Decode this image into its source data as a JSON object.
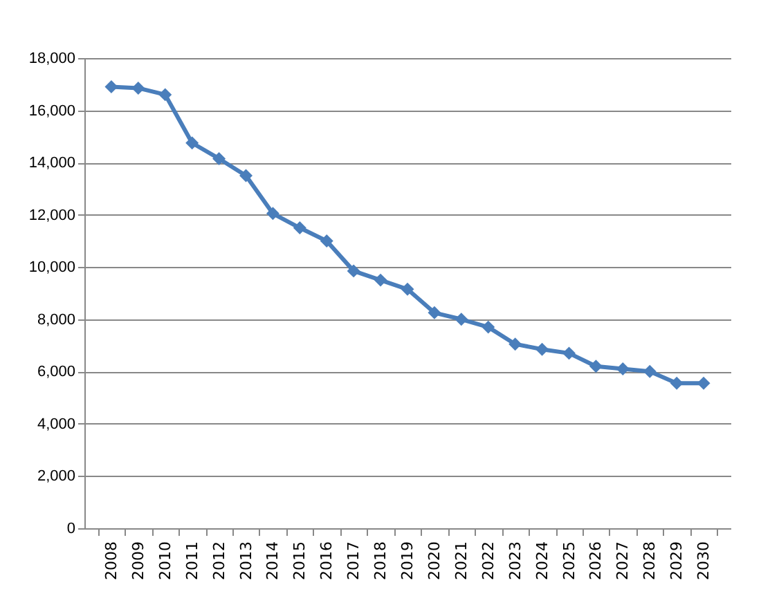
{
  "chart_data": {
    "type": "line",
    "categories": [
      "2008",
      "2009",
      "2010",
      "2011",
      "2012",
      "2013",
      "2014",
      "2015",
      "2016",
      "2017",
      "2018",
      "2019",
      "2020",
      "2021",
      "2022",
      "2023",
      "2024",
      "2025",
      "2026",
      "2027",
      "2028",
      "2029",
      "2030"
    ],
    "series": [
      {
        "color": "#4a7ebb",
        "values": [
          16900,
          16850,
          16600,
          14750,
          14150,
          13500,
          12050,
          11500,
          11000,
          9850,
          9500,
          9150,
          8250,
          8000,
          7700,
          7050,
          6850,
          6700,
          6200,
          6100,
          6000,
          5550,
          5550
        ]
      }
    ],
    "ylim": [
      0,
      18000
    ],
    "yticks": [
      0,
      {
        "value": 2000,
        "label": "2,000"
      },
      {
        "value": 4000,
        "label": "4,000"
      },
      {
        "value": 6000,
        "label": "6,000"
      },
      {
        "value": 8000,
        "label": "8,000"
      },
      {
        "value": 10000,
        "label": "10,000"
      },
      {
        "value": 12000,
        "label": "12,000"
      },
      {
        "value": 14000,
        "label": "14,000"
      },
      {
        "value": 16000,
        "label": "16,000"
      },
      {
        "value": 18000,
        "label": "18,000"
      }
    ],
    "grid": "y",
    "legend": false,
    "marker": "diamond",
    "line_style": "solid"
  }
}
